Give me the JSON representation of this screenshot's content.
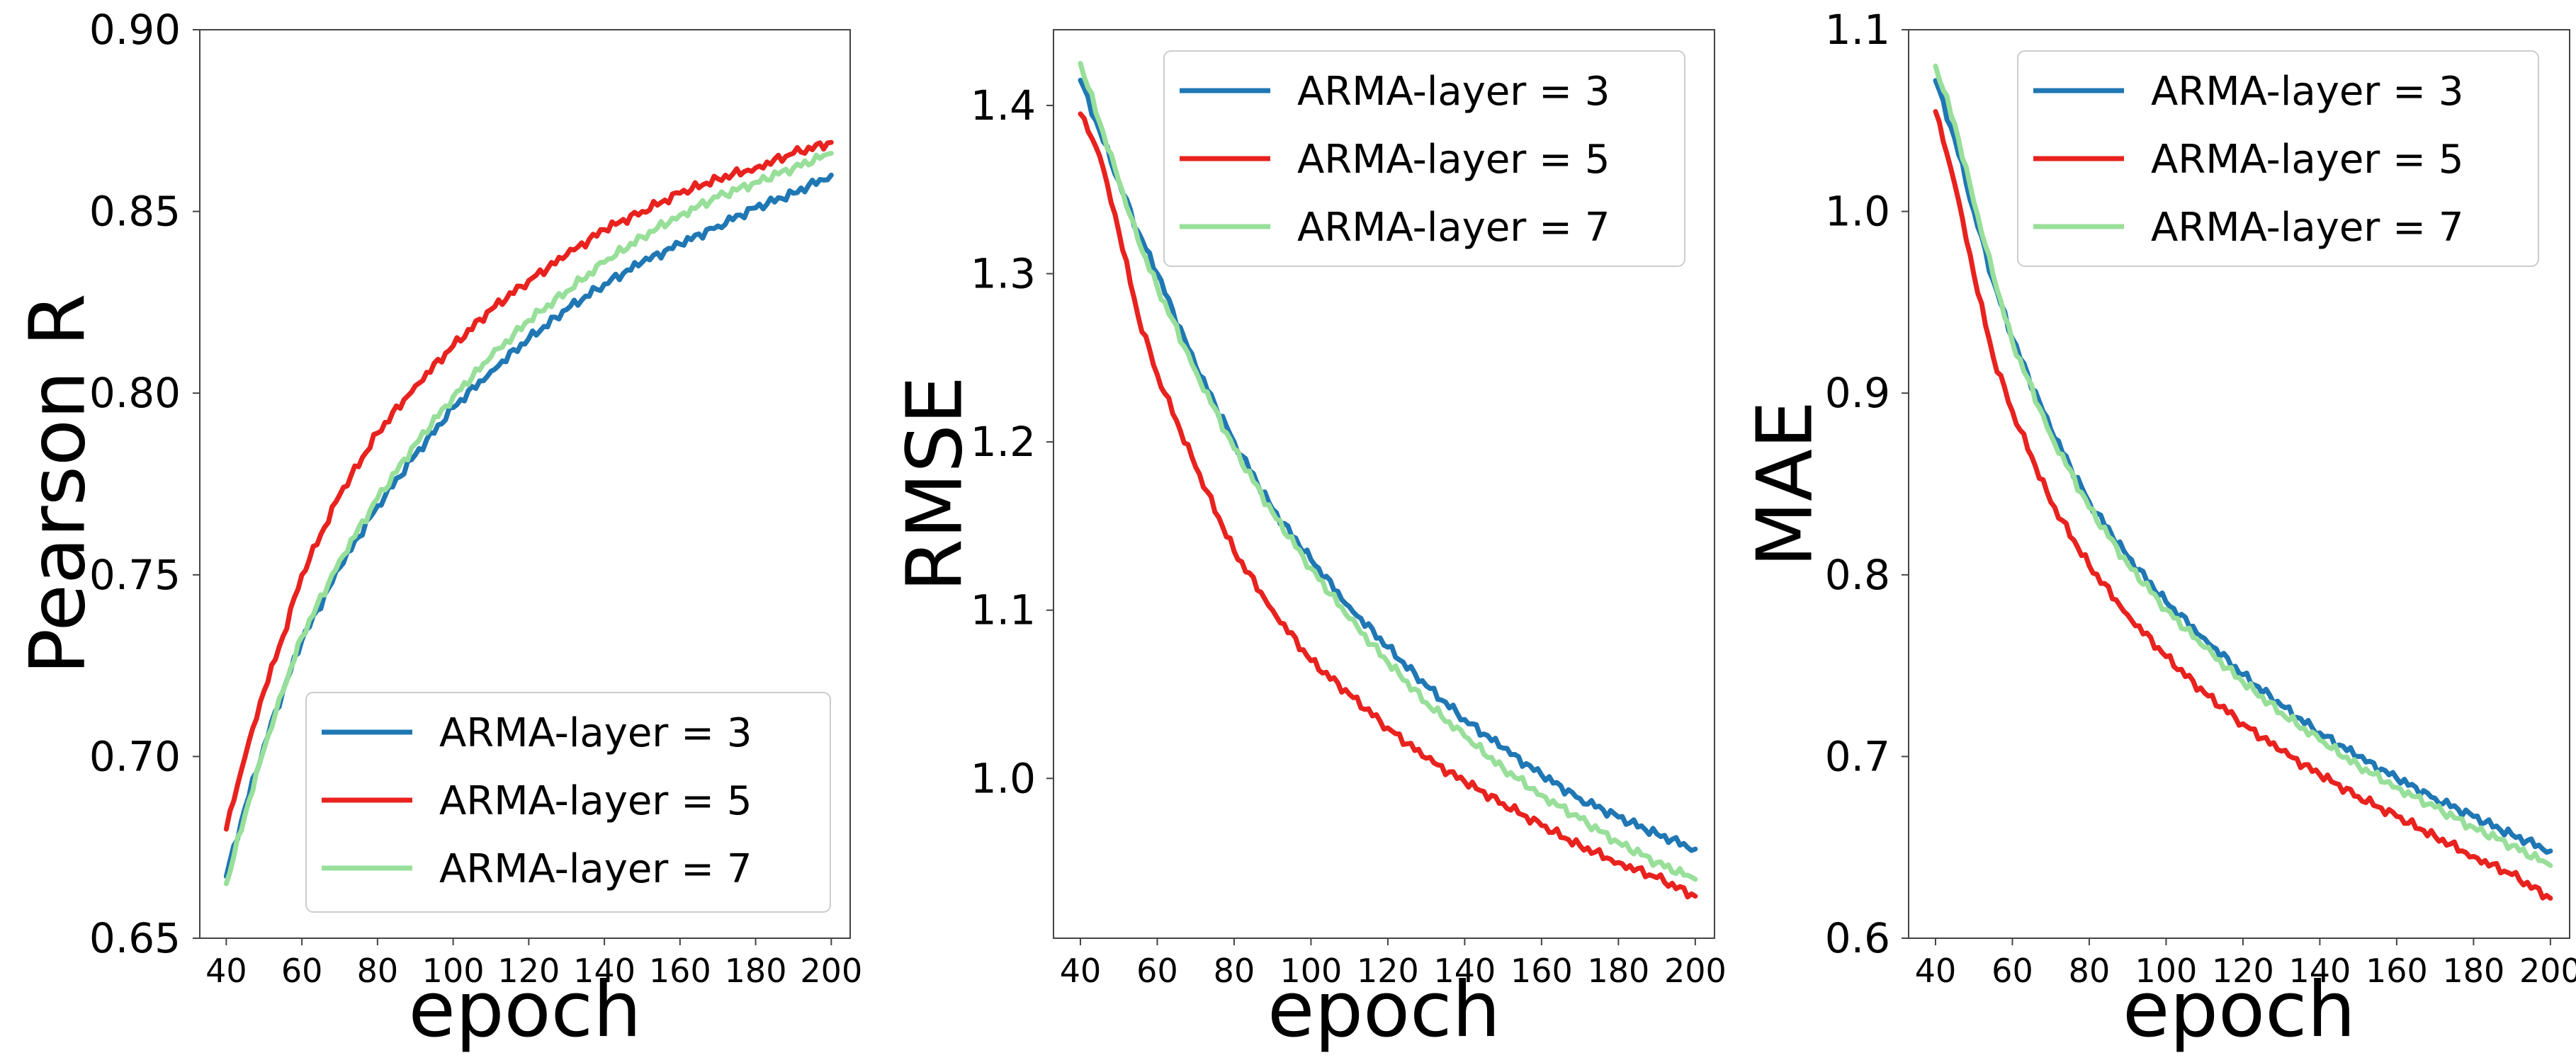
{
  "chart_data": [
    {
      "type": "line",
      "xlabel": "epoch",
      "ylabel": "Pearson R",
      "xlim": [
        33,
        205
      ],
      "ylim": [
        0.65,
        0.9
      ],
      "x_ticks": [
        40,
        60,
        80,
        100,
        120,
        140,
        160,
        180,
        200
      ],
      "x_tick_labels": [
        "40",
        "60",
        "80",
        "100",
        "120",
        "140",
        "160",
        "180",
        "200"
      ],
      "y_ticks": [
        0.65,
        0.7,
        0.75,
        0.8,
        0.85,
        0.9
      ],
      "y_tick_labels": [
        "0.65",
        "0.70",
        "0.75",
        "0.80",
        "0.85",
        "0.90"
      ],
      "legend_position": "lower-right",
      "series": [
        {
          "name": "ARMA-layer = 3",
          "color": "#1f77b4",
          "x": [
            40,
            45,
            50,
            55,
            60,
            70,
            80,
            90,
            100,
            110,
            120,
            130,
            140,
            150,
            160,
            170,
            180,
            190,
            200
          ],
          "values": [
            0.667,
            0.686,
            0.703,
            0.718,
            0.732,
            0.752,
            0.769,
            0.783,
            0.796,
            0.806,
            0.815,
            0.823,
            0.83,
            0.836,
            0.841,
            0.846,
            0.851,
            0.855,
            0.86
          ]
        },
        {
          "name": "ARMA-layer = 5",
          "color": "#e8221e",
          "x": [
            40,
            45,
            50,
            55,
            60,
            70,
            80,
            90,
            100,
            110,
            120,
            130,
            140,
            150,
            160,
            170,
            180,
            190,
            200
          ],
          "values": [
            0.68,
            0.7,
            0.718,
            0.733,
            0.75,
            0.772,
            0.789,
            0.802,
            0.813,
            0.823,
            0.831,
            0.838,
            0.845,
            0.85,
            0.855,
            0.859,
            0.862,
            0.866,
            0.869
          ]
        },
        {
          "name": "ARMA-layer = 7",
          "color": "#98df9a",
          "x": [
            40,
            45,
            50,
            55,
            60,
            70,
            80,
            90,
            100,
            110,
            120,
            130,
            140,
            150,
            160,
            170,
            180,
            190,
            200
          ],
          "values": [
            0.665,
            0.684,
            0.702,
            0.718,
            0.733,
            0.754,
            0.771,
            0.786,
            0.799,
            0.81,
            0.82,
            0.828,
            0.836,
            0.843,
            0.849,
            0.854,
            0.858,
            0.862,
            0.866
          ]
        }
      ]
    },
    {
      "type": "line",
      "xlabel": "epoch",
      "ylabel": "RMSE",
      "xlim": [
        33,
        205
      ],
      "ylim": [
        0.905,
        1.445
      ],
      "x_ticks": [
        40,
        60,
        80,
        100,
        120,
        140,
        160,
        180,
        200
      ],
      "x_tick_labels": [
        "40",
        "60",
        "80",
        "100",
        "120",
        "140",
        "160",
        "180",
        "200"
      ],
      "y_ticks": [
        1.0,
        1.1,
        1.2,
        1.3,
        1.4
      ],
      "y_tick_labels": [
        "1.0",
        "1.1",
        "1.2",
        "1.3",
        "1.4"
      ],
      "legend_position": "top-right",
      "series": [
        {
          "name": "ARMA-layer = 3",
          "color": "#1f77b4",
          "x": [
            40,
            45,
            50,
            55,
            60,
            70,
            80,
            90,
            100,
            110,
            120,
            130,
            140,
            150,
            160,
            170,
            180,
            190,
            200
          ],
          "values": [
            1.415,
            1.385,
            1.355,
            1.325,
            1.3,
            1.245,
            1.2,
            1.16,
            1.13,
            1.102,
            1.078,
            1.055,
            1.035,
            1.018,
            1.002,
            0.988,
            0.977,
            0.967,
            0.958
          ]
        },
        {
          "name": "ARMA-layer = 5",
          "color": "#e8221e",
          "x": [
            40,
            45,
            50,
            55,
            60,
            70,
            80,
            90,
            100,
            110,
            120,
            130,
            140,
            150,
            160,
            170,
            180,
            190,
            200
          ],
          "values": [
            1.395,
            1.37,
            1.325,
            1.275,
            1.24,
            1.185,
            1.135,
            1.1,
            1.07,
            1.05,
            1.03,
            1.012,
            0.998,
            0.985,
            0.972,
            0.96,
            0.95,
            0.941,
            0.93
          ]
        },
        {
          "name": "ARMA-layer = 7",
          "color": "#98df9a",
          "x": [
            40,
            45,
            50,
            55,
            60,
            70,
            80,
            90,
            100,
            110,
            120,
            130,
            140,
            150,
            160,
            170,
            180,
            190,
            200
          ],
          "values": [
            1.425,
            1.39,
            1.355,
            1.32,
            1.292,
            1.242,
            1.196,
            1.158,
            1.125,
            1.095,
            1.069,
            1.045,
            1.025,
            1.006,
            0.99,
            0.976,
            0.962,
            0.95,
            0.94
          ]
        }
      ]
    },
    {
      "type": "line",
      "xlabel": "epoch",
      "ylabel": "MAE",
      "xlim": [
        33,
        205
      ],
      "ylim": [
        0.6,
        1.1
      ],
      "x_ticks": [
        40,
        60,
        80,
        100,
        120,
        140,
        160,
        180,
        200
      ],
      "x_tick_labels": [
        "40",
        "60",
        "80",
        "100",
        "120",
        "140",
        "160",
        "180",
        "200"
      ],
      "y_ticks": [
        0.6,
        0.7,
        0.8,
        0.9,
        1.0,
        1.1
      ],
      "y_tick_labels": [
        "0.6",
        "0.7",
        "0.8",
        "0.9",
        "1.0",
        "1.1"
      ],
      "legend_position": "top-right",
      "series": [
        {
          "name": "ARMA-layer = 3",
          "color": "#1f77b4",
          "x": [
            40,
            45,
            50,
            55,
            60,
            70,
            80,
            90,
            100,
            110,
            120,
            130,
            140,
            150,
            160,
            170,
            180,
            190,
            200
          ],
          "values": [
            1.072,
            1.04,
            1.0,
            0.962,
            0.93,
            0.88,
            0.84,
            0.81,
            0.785,
            0.765,
            0.745,
            0.728,
            0.713,
            0.7,
            0.688,
            0.677,
            0.667,
            0.657,
            0.648
          ]
        },
        {
          "name": "ARMA-layer = 5",
          "color": "#e8221e",
          "x": [
            40,
            45,
            50,
            55,
            60,
            70,
            80,
            90,
            100,
            110,
            120,
            130,
            140,
            150,
            160,
            170,
            180,
            190,
            200
          ],
          "values": [
            1.055,
            1.015,
            0.965,
            0.92,
            0.89,
            0.84,
            0.805,
            0.778,
            0.755,
            0.735,
            0.718,
            0.703,
            0.69,
            0.678,
            0.667,
            0.656,
            0.645,
            0.635,
            0.622
          ]
        },
        {
          "name": "ARMA-layer = 7",
          "color": "#98df9a",
          "x": [
            40,
            45,
            50,
            55,
            60,
            70,
            80,
            90,
            100,
            110,
            120,
            130,
            140,
            150,
            160,
            170,
            180,
            190,
            200
          ],
          "values": [
            1.08,
            1.048,
            1.005,
            0.965,
            0.928,
            0.877,
            0.837,
            0.806,
            0.781,
            0.76,
            0.741,
            0.724,
            0.709,
            0.695,
            0.683,
            0.672,
            0.661,
            0.651,
            0.64
          ]
        }
      ]
    }
  ]
}
